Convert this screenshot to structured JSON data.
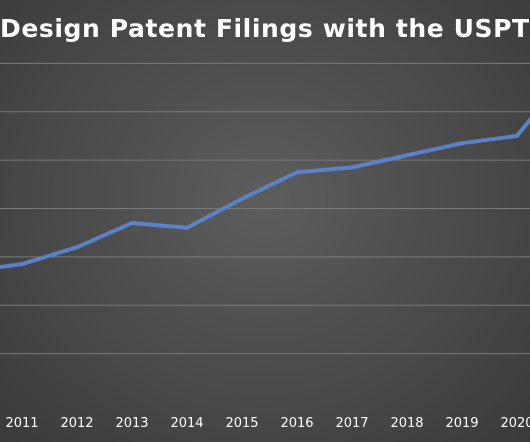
{
  "chart_data": {
    "type": "line",
    "title": "Design Patent Filings with the USPTO",
    "xlabel": "",
    "ylabel": "",
    "categories": [
      "2011",
      "2012",
      "2013",
      "2014",
      "2015",
      "2016",
      "2017",
      "2018",
      "2019",
      "2020"
    ],
    "x": [
      2010,
      2011,
      2012,
      2013,
      2014,
      2015,
      2016,
      2017,
      2018,
      2019,
      2020,
      2020.5
    ],
    "series": [
      {
        "values": [
          27,
          28.5,
          32,
          37,
          36,
          42,
          47.5,
          48.5,
          51,
          53.5,
          55,
          62
        ]
      }
    ],
    "ylim": [
      0,
      80
    ],
    "y_grid_step": 10,
    "grid": "horizontal",
    "legend": "none",
    "colors": {
      "background": "#4d4d4d",
      "line": "#5b82c7",
      "grid": "#7a7a7a",
      "text": "#ffffff"
    }
  }
}
